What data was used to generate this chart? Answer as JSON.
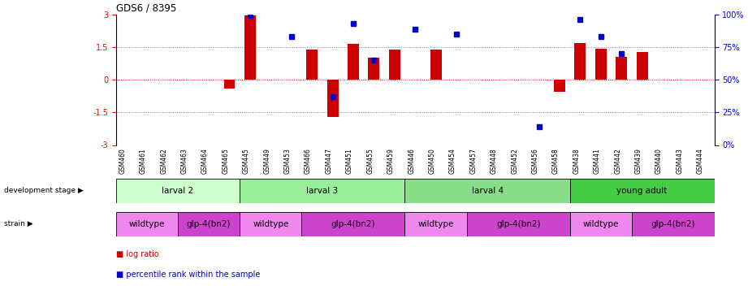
{
  "title": "GDS6 / 8395",
  "samples": [
    "GSM460",
    "GSM461",
    "GSM462",
    "GSM463",
    "GSM464",
    "GSM465",
    "GSM445",
    "GSM449",
    "GSM453",
    "GSM466",
    "GSM447",
    "GSM451",
    "GSM455",
    "GSM459",
    "GSM446",
    "GSM450",
    "GSM454",
    "GSM457",
    "GSM448",
    "GSM452",
    "GSM456",
    "GSM458",
    "GSM438",
    "GSM441",
    "GSM442",
    "GSM439",
    "GSM440",
    "GSM443",
    "GSM444"
  ],
  "log_ratio": [
    0,
    0,
    0,
    0,
    0,
    -0.4,
    2.95,
    0,
    0,
    1.38,
    -1.7,
    1.65,
    1.0,
    1.4,
    0,
    1.38,
    0,
    0,
    0,
    0,
    0,
    -0.55,
    1.68,
    1.42,
    1.05,
    1.28,
    0,
    0,
    0
  ],
  "percentile": [
    null,
    null,
    null,
    null,
    null,
    null,
    99,
    null,
    83,
    null,
    37,
    93,
    65,
    null,
    89,
    null,
    85,
    null,
    null,
    null,
    14,
    null,
    96,
    83,
    70,
    null,
    null,
    null,
    null
  ],
  "dev_stage_groups": [
    {
      "label": "larval 2",
      "start": 0,
      "end": 6,
      "color": "#ccffcc"
    },
    {
      "label": "larval 3",
      "start": 6,
      "end": 14,
      "color": "#99ee99"
    },
    {
      "label": "larval 4",
      "start": 14,
      "end": 22,
      "color": "#88dd88"
    },
    {
      "label": "young adult",
      "start": 22,
      "end": 29,
      "color": "#44cc44"
    }
  ],
  "strain_groups": [
    {
      "label": "wildtype",
      "start": 0,
      "end": 3,
      "color": "#ee88ee"
    },
    {
      "label": "glp-4(bn2)",
      "start": 3,
      "end": 6,
      "color": "#cc44cc"
    },
    {
      "label": "wildtype",
      "start": 6,
      "end": 9,
      "color": "#ee88ee"
    },
    {
      "label": "glp-4(bn2)",
      "start": 9,
      "end": 14,
      "color": "#cc44cc"
    },
    {
      "label": "wildtype",
      "start": 14,
      "end": 17,
      "color": "#ee88ee"
    },
    {
      "label": "glp-4(bn2)",
      "start": 17,
      "end": 22,
      "color": "#cc44cc"
    },
    {
      "label": "wildtype",
      "start": 22,
      "end": 25,
      "color": "#ee88ee"
    },
    {
      "label": "glp-4(bn2)",
      "start": 25,
      "end": 29,
      "color": "#cc44cc"
    }
  ],
  "ylim_left": [
    -3,
    3
  ],
  "yticks_left": [
    -3,
    -1.5,
    0,
    1.5,
    3
  ],
  "yticks_right": [
    0,
    25,
    50,
    75,
    100
  ],
  "ytick_labels_right": [
    "0%",
    "25%",
    "50%",
    "75%",
    "100%"
  ],
  "bar_color": "#cc0000",
  "dot_color": "#0000cc"
}
